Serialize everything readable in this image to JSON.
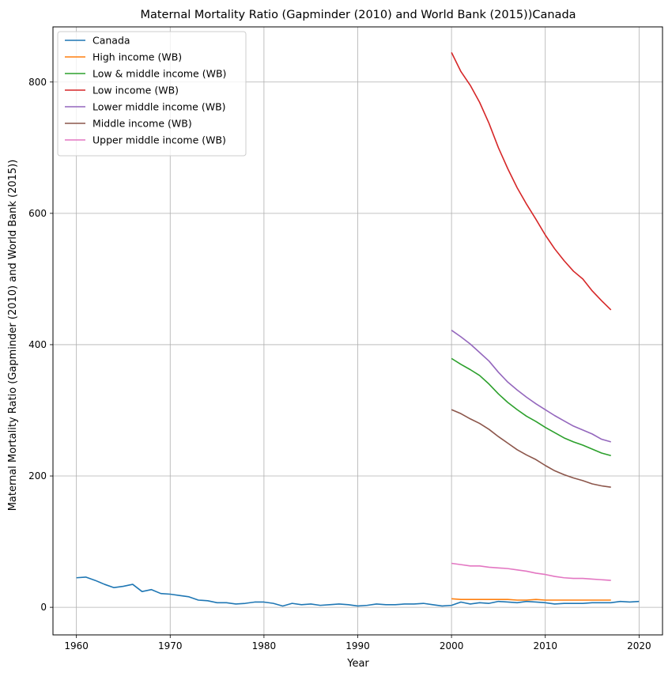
{
  "chart_data": {
    "type": "line",
    "title": "Maternal Mortality Ratio (Gapminder (2010) and World Bank (2015))Canada",
    "xlabel": "Year",
    "ylabel": "Maternal Mortality Ratio (Gapminder (2010) and World Bank (2015))",
    "xlim": [
      1957.5,
      2022.5
    ],
    "ylim": [
      -42,
      884
    ],
    "xticks": [
      1960,
      1970,
      1980,
      1990,
      2000,
      2010,
      2020
    ],
    "yticks": [
      0,
      200,
      400,
      600,
      800
    ],
    "grid": true,
    "legend_position": "upper-left",
    "series": [
      {
        "name": "Canada",
        "color": "#1f77b4",
        "x": [
          1960,
          1961,
          1962,
          1963,
          1964,
          1965,
          1966,
          1967,
          1968,
          1969,
          1970,
          1971,
          1972,
          1973,
          1974,
          1975,
          1976,
          1977,
          1978,
          1979,
          1980,
          1981,
          1982,
          1983,
          1984,
          1985,
          1986,
          1987,
          1988,
          1989,
          1990,
          1991,
          1992,
          1993,
          1994,
          1995,
          1996,
          1997,
          1998,
          1999,
          2000,
          2001,
          2002,
          2003,
          2004,
          2005,
          2006,
          2007,
          2008,
          2009,
          2010,
          2011,
          2012,
          2013,
          2014,
          2015,
          2016,
          2017,
          2018,
          2019,
          2020
        ],
        "y": [
          45,
          46,
          41,
          35,
          30,
          32,
          35,
          24,
          27,
          21,
          20,
          18,
          16,
          11,
          10,
          7,
          7,
          5,
          6,
          8,
          8,
          6,
          2,
          6,
          4,
          5,
          3,
          4,
          5,
          4,
          2,
          3,
          5,
          4,
          4,
          5,
          5,
          6,
          4,
          2,
          3,
          8,
          5,
          7,
          6,
          9,
          8,
          7,
          9,
          8,
          7,
          5,
          6,
          6,
          6,
          7,
          7,
          7,
          9,
          8,
          9
        ]
      },
      {
        "name": "High income (WB)",
        "color": "#ff7f0e",
        "x": [
          2000,
          2001,
          2002,
          2003,
          2004,
          2005,
          2006,
          2007,
          2008,
          2009,
          2010,
          2011,
          2012,
          2013,
          2014,
          2015,
          2016,
          2017
        ],
        "y": [
          13,
          12,
          12,
          12,
          12,
          12,
          12,
          11,
          11,
          12,
          11,
          11,
          11,
          11,
          11,
          11,
          11,
          11
        ]
      },
      {
        "name": "Low & middle income (WB)",
        "color": "#2ca02c",
        "x": [
          2000,
          2001,
          2002,
          2003,
          2004,
          2005,
          2006,
          2007,
          2008,
          2009,
          2010,
          2011,
          2012,
          2013,
          2014,
          2015,
          2016,
          2017
        ],
        "y": [
          379,
          370,
          362,
          353,
          340,
          325,
          312,
          301,
          291,
          283,
          274,
          266,
          258,
          252,
          247,
          241,
          235,
          231
        ]
      },
      {
        "name": "Low income (WB)",
        "color": "#d62728",
        "x": [
          2000,
          2001,
          2002,
          2003,
          2004,
          2005,
          2006,
          2007,
          2008,
          2009,
          2010,
          2011,
          2012,
          2013,
          2014,
          2015,
          2016,
          2017
        ],
        "y": [
          845,
          816,
          795,
          769,
          737,
          700,
          668,
          639,
          614,
          591,
          567,
          546,
          528,
          512,
          500,
          482,
          467,
          453
        ]
      },
      {
        "name": "Lower middle income (WB)",
        "color": "#9467bd",
        "x": [
          2000,
          2001,
          2002,
          2003,
          2004,
          2005,
          2006,
          2007,
          2008,
          2009,
          2010,
          2011,
          2012,
          2013,
          2014,
          2015,
          2016,
          2017
        ],
        "y": [
          422,
          412,
          401,
          388,
          375,
          358,
          343,
          331,
          320,
          310,
          301,
          292,
          284,
          276,
          270,
          264,
          256,
          252
        ]
      },
      {
        "name": "Middle income (WB)",
        "color": "#8c564b",
        "x": [
          2000,
          2001,
          2002,
          2003,
          2004,
          2005,
          2006,
          2007,
          2008,
          2009,
          2010,
          2011,
          2012,
          2013,
          2014,
          2015,
          2016,
          2017
        ],
        "y": [
          301,
          295,
          287,
          280,
          271,
          260,
          250,
          240,
          232,
          225,
          216,
          208,
          202,
          197,
          193,
          188,
          185,
          183
        ]
      },
      {
        "name": "Upper middle income (WB)",
        "color": "#e377c2",
        "x": [
          2000,
          2001,
          2002,
          2003,
          2004,
          2005,
          2006,
          2007,
          2008,
          2009,
          2010,
          2011,
          2012,
          2013,
          2014,
          2015,
          2016,
          2017
        ],
        "y": [
          67,
          65,
          63,
          63,
          61,
          60,
          59,
          57,
          55,
          52,
          50,
          47,
          45,
          44,
          44,
          43,
          42,
          41
        ]
      }
    ]
  }
}
